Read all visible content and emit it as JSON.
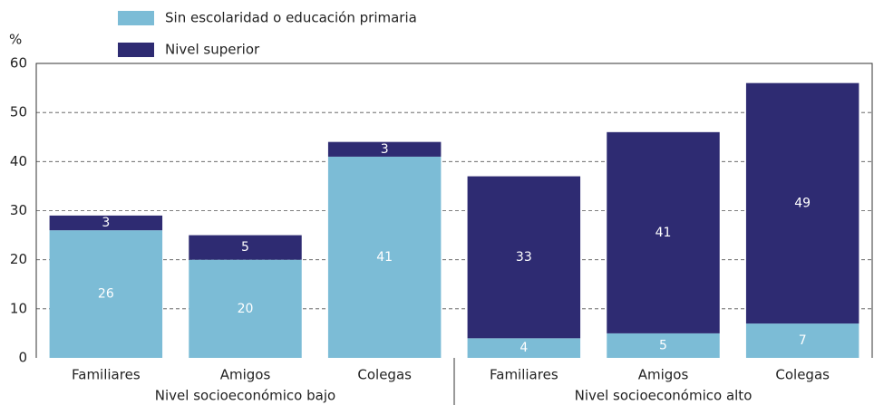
{
  "chart_data": {
    "type": "stacked_bar",
    "y_label": "%",
    "groups": [
      {
        "name": "Nivel socioeconómico bajo",
        "categories": [
          "Familiares",
          "Amigos",
          "Colegas"
        ]
      },
      {
        "name": "Nivel socioeconómico alto",
        "categories": [
          "Familiares",
          "Amigos",
          "Colegas"
        ]
      }
    ],
    "series": [
      {
        "name": "Sin escolaridad o educación primaria",
        "color": "#7cbcd6",
        "values": [
          26,
          20,
          41,
          4,
          5,
          7
        ]
      },
      {
        "name": "Nivel superior",
        "color": "#2e2b72",
        "values": [
          3,
          5,
          3,
          33,
          41,
          49
        ]
      }
    ],
    "ylim": [
      0,
      60
    ],
    "yticks": [
      0,
      10,
      20,
      30,
      40,
      50,
      60
    ],
    "grid": true
  }
}
